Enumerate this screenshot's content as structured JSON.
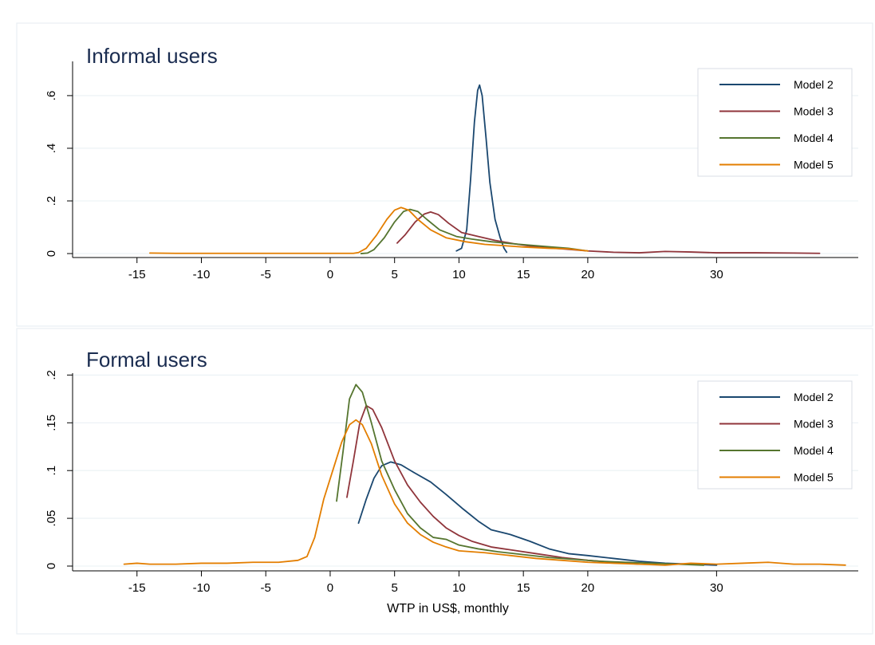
{
  "chart_data": [
    {
      "type": "line",
      "title": "Informal users",
      "xlabel": "",
      "ylabel": "",
      "xlim": [
        -20,
        41
      ],
      "ylim": [
        -0.015,
        0.73
      ],
      "x_ticks": [
        -15,
        -10,
        -5,
        0,
        5,
        10,
        15,
        20,
        30
      ],
      "y_ticks": [
        0,
        0.2,
        0.4,
        0.6
      ],
      "y_tick_labels": [
        "0",
        ".2",
        ".4",
        ".6"
      ],
      "grid": true,
      "legend_position": "top-right",
      "series": [
        {
          "name": "Model 2",
          "color": "#1a476f",
          "points": [
            [
              9.8,
              0.01
            ],
            [
              10.2,
              0.02
            ],
            [
              10.6,
              0.09
            ],
            [
              10.9,
              0.28
            ],
            [
              11.2,
              0.5
            ],
            [
              11.45,
              0.62
            ],
            [
              11.6,
              0.64
            ],
            [
              11.8,
              0.6
            ],
            [
              12.1,
              0.44
            ],
            [
              12.4,
              0.27
            ],
            [
              12.8,
              0.13
            ],
            [
              13.2,
              0.06
            ],
            [
              13.5,
              0.02
            ],
            [
              13.7,
              0.005
            ]
          ]
        },
        {
          "name": "Model 3",
          "color": "#90353b",
          "points": [
            [
              5.2,
              0.04
            ],
            [
              5.8,
              0.07
            ],
            [
              6.6,
              0.12
            ],
            [
              7.3,
              0.15
            ],
            [
              7.8,
              0.158
            ],
            [
              8.4,
              0.148
            ],
            [
              9.2,
              0.115
            ],
            [
              10.2,
              0.08
            ],
            [
              11.5,
              0.065
            ],
            [
              12.8,
              0.05
            ],
            [
              14.2,
              0.038
            ],
            [
              16,
              0.025
            ],
            [
              18,
              0.018
            ],
            [
              20,
              0.01
            ],
            [
              22,
              0.005
            ],
            [
              24,
              0.003
            ],
            [
              26,
              0.008
            ],
            [
              28,
              0.006
            ],
            [
              30,
              0.003
            ],
            [
              33,
              0.003
            ],
            [
              36,
              0.002
            ],
            [
              38,
              0.001
            ]
          ]
        },
        {
          "name": "Model 4",
          "color": "#55752f",
          "points": [
            [
              2.4,
              0
            ],
            [
              2.9,
              0.002
            ],
            [
              3.4,
              0.015
            ],
            [
              4.2,
              0.06
            ],
            [
              5.0,
              0.12
            ],
            [
              5.7,
              0.16
            ],
            [
              6.2,
              0.168
            ],
            [
              6.8,
              0.16
            ],
            [
              7.5,
              0.13
            ],
            [
              8.5,
              0.09
            ],
            [
              9.8,
              0.065
            ],
            [
              11,
              0.055
            ],
            [
              12.5,
              0.045
            ],
            [
              14,
              0.038
            ],
            [
              15.5,
              0.032
            ],
            [
              17,
              0.026
            ],
            [
              18.5,
              0.02
            ],
            [
              20,
              0.01
            ]
          ]
        },
        {
          "name": "Model 5",
          "color": "#e37e00",
          "points": [
            [
              -14,
              0.002
            ],
            [
              -12,
              0.001
            ],
            [
              -9,
              0.001
            ],
            [
              -5,
              0.001
            ],
            [
              0,
              0.001
            ],
            [
              1.8,
              0.001
            ],
            [
              2.2,
              0.004
            ],
            [
              2.8,
              0.02
            ],
            [
              3.6,
              0.07
            ],
            [
              4.4,
              0.13
            ],
            [
              5.0,
              0.165
            ],
            [
              5.5,
              0.175
            ],
            [
              6.1,
              0.165
            ],
            [
              6.8,
              0.13
            ],
            [
              7.8,
              0.09
            ],
            [
              9.0,
              0.06
            ],
            [
              10.5,
              0.045
            ],
            [
              12,
              0.035
            ],
            [
              13.5,
              0.03
            ],
            [
              15,
              0.025
            ],
            [
              17,
              0.02
            ],
            [
              18.5,
              0.018
            ],
            [
              20,
              0.01
            ]
          ]
        }
      ]
    },
    {
      "type": "line",
      "title": "Formal users",
      "xlabel": "WTP in US$, monthly",
      "ylabel": "",
      "xlim": [
        -20,
        41
      ],
      "ylim": [
        -0.005,
        0.202
      ],
      "x_ticks": [
        -15,
        -10,
        -5,
        0,
        5,
        10,
        15,
        20,
        30
      ],
      "y_ticks": [
        0,
        0.05,
        0.1,
        0.15,
        0.2
      ],
      "y_tick_labels": [
        "0",
        ".05",
        ".1",
        ".15",
        ".2"
      ],
      "grid": true,
      "legend_position": "top-right",
      "series": [
        {
          "name": "Model 2",
          "color": "#1a476f",
          "points": [
            [
              2.2,
              0.045
            ],
            [
              2.8,
              0.07
            ],
            [
              3.4,
              0.092
            ],
            [
              4.0,
              0.105
            ],
            [
              4.7,
              0.109
            ],
            [
              5.5,
              0.106
            ],
            [
              6.5,
              0.098
            ],
            [
              7.8,
              0.088
            ],
            [
              9.0,
              0.075
            ],
            [
              10.3,
              0.06
            ],
            [
              11.5,
              0.047
            ],
            [
              12.5,
              0.038
            ],
            [
              14,
              0.033
            ],
            [
              15.5,
              0.026
            ],
            [
              17,
              0.018
            ],
            [
              18.5,
              0.013
            ],
            [
              20,
              0.011
            ],
            [
              22,
              0.008
            ],
            [
              24,
              0.005
            ],
            [
              26,
              0.003
            ],
            [
              28,
              0.002
            ],
            [
              30,
              0.001
            ]
          ]
        },
        {
          "name": "Model 3",
          "color": "#90353b",
          "points": [
            [
              1.3,
              0.072
            ],
            [
              1.8,
              0.11
            ],
            [
              2.3,
              0.15
            ],
            [
              2.8,
              0.168
            ],
            [
              3.3,
              0.164
            ],
            [
              4.0,
              0.145
            ],
            [
              5.0,
              0.11
            ],
            [
              6.0,
              0.085
            ],
            [
              7.0,
              0.067
            ],
            [
              8.0,
              0.052
            ],
            [
              9.0,
              0.04
            ],
            [
              10.0,
              0.032
            ],
            [
              11.0,
              0.026
            ],
            [
              12.5,
              0.02
            ],
            [
              14,
              0.017
            ],
            [
              16,
              0.013
            ],
            [
              18,
              0.009
            ],
            [
              20,
              0.006
            ],
            [
              22,
              0.004
            ],
            [
              24,
              0.002
            ]
          ]
        },
        {
          "name": "Model 4",
          "color": "#55752f",
          "points": [
            [
              0.5,
              0.068
            ],
            [
              1.0,
              0.12
            ],
            [
              1.5,
              0.175
            ],
            [
              2.0,
              0.19
            ],
            [
              2.5,
              0.182
            ],
            [
              3.2,
              0.15
            ],
            [
              4.0,
              0.11
            ],
            [
              5.0,
              0.08
            ],
            [
              6.0,
              0.055
            ],
            [
              7.0,
              0.04
            ],
            [
              8.0,
              0.03
            ],
            [
              9.0,
              0.028
            ],
            [
              10.0,
              0.022
            ],
            [
              11.5,
              0.018
            ],
            [
              13,
              0.015
            ],
            [
              15,
              0.012
            ],
            [
              17,
              0.009
            ],
            [
              19,
              0.007
            ],
            [
              21,
              0.005
            ],
            [
              23,
              0.004
            ],
            [
              25,
              0.003
            ],
            [
              27,
              0.002
            ],
            [
              29,
              0.001
            ]
          ]
        },
        {
          "name": "Model 5",
          "color": "#e37e00",
          "points": [
            [
              -16,
              0.002
            ],
            [
              -15,
              0.003
            ],
            [
              -14,
              0.002
            ],
            [
              -12,
              0.002
            ],
            [
              -10,
              0.003
            ],
            [
              -8,
              0.003
            ],
            [
              -6,
              0.004
            ],
            [
              -4,
              0.004
            ],
            [
              -2.5,
              0.006
            ],
            [
              -1.8,
              0.01
            ],
            [
              -1.2,
              0.03
            ],
            [
              -0.5,
              0.07
            ],
            [
              0.2,
              0.1
            ],
            [
              0.9,
              0.13
            ],
            [
              1.5,
              0.148
            ],
            [
              2.0,
              0.153
            ],
            [
              2.5,
              0.148
            ],
            [
              3.2,
              0.128
            ],
            [
              4.0,
              0.095
            ],
            [
              5.0,
              0.065
            ],
            [
              6.0,
              0.045
            ],
            [
              7.0,
              0.033
            ],
            [
              8.0,
              0.025
            ],
            [
              9.0,
              0.02
            ],
            [
              10,
              0.016
            ],
            [
              12,
              0.014
            ],
            [
              14,
              0.011
            ],
            [
              16,
              0.008
            ],
            [
              18,
              0.006
            ],
            [
              20,
              0.004
            ],
            [
              22,
              0.003
            ],
            [
              24,
              0.002
            ],
            [
              26,
              0.001
            ],
            [
              28,
              0.003
            ],
            [
              30,
              0.002
            ],
            [
              32,
              0.003
            ],
            [
              34,
              0.004
            ],
            [
              36,
              0.002
            ],
            [
              38,
              0.002
            ],
            [
              40,
              0.001
            ]
          ]
        }
      ]
    }
  ]
}
